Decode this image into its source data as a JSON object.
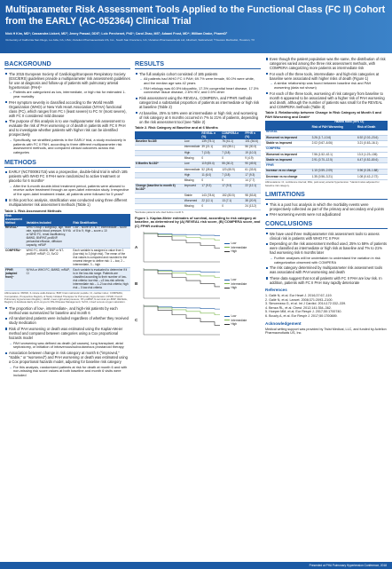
{
  "header": {
    "title": "Multiparameter Risk Assessment Tools Applied to the Functional Class (FC II) Cohort from the EARLY (AC-052364) Clinical Trial",
    "authors": "Nick H Kim, MD¹; Cassandra Lickert, MD²; Jenny Prasad, DDS²; Loic Perchenet, PhD³; Carol Zhao, MS²; Adaani Frost, MD⁴; William Drake, PharmD²",
    "affiliations": "¹University of California San Diego, La Jolla, CA, USA; ²Actelion Pharmaceuticals US, Inc., South San Francisco, CA; ³Actelion Pharmaceuticals Ltd, Allschwil, Switzerland; ⁴Houston Methodist, Houston, TX"
  },
  "background": {
    "heading": "BACKGROUND",
    "items": [
      {
        "text": "The 2015 European Society of Cardiology/European Respiratory Society (ESC/ERS) guidelines provide a multiparameter risk assessment guidelines for use at diagnosis and follow-up of patients with pulmonary arterial hypertension (PAH)¹",
        "sub": [
          "Patients are categorized as low, intermediate, or high risk for estimated 1-year mortality"
        ]
      },
      {
        "text": "PAH symptom severity is classified according to the World Health Organization (WHO) or New York Heart Association (NYHA) functional class (FC), which ranges from FC I (least severe) to FC IV (most severe), with FC II considered mild disease"
      },
      {
        "text": "The purpose of this analysis is to use multiparameter risk assessment to evaluate the risk of PAH worsening or of death in patients with FC II PAH and to investigate whether patients with higher risk can be identified prospectively",
        "sub": [
          "Specifically, we stratified patients in the EARLY trial, a study exclusively in patients with FC II PAH, according to three different multiparameter risk assessment methods, and compared clinical outcomes across risk categories"
        ]
      }
    ]
  },
  "methods": {
    "heading": "METHODS",
    "items": [
      {
        "text": "EARLY (NCT00091715) was a prospective, double-blind trial in which 185 patients with WHO FC II PAH were randomized to active treatment or placebo for 6 months²",
        "sub": [
          "After the 6-month double-blind treatment period, patients were allowed to receive active treatment through an open-label extension study. Irrespective of the open-label treatment intake, all patients were followed for 5 years³"
        ]
      },
      {
        "text": "In this post hoc analysis, stratification was conducted using three different multiparameter risk assessment methods (Table 1)"
      },
      {
        "table": {
          "caption": "Table 1. Risk Assessment Methods",
          "header": [
            "Risk Assessment Method",
            "Variables Included",
            "Risk Stratification"
          ],
          "rows": [
            [
              "REVEAL⁴",
              "WHO Group 1 subgroup, age, heart rate, systolic blood pressure, NYHA or WHO FC, renal insufficiency, 6MWD, BNP/NT-proBNP, pericardial effusion, diffusion capacity, mRAP",
              "Low – score of 1 to 7; Intermediate – score of 8 to 9; High – score ≥ 10"
            ],
            [
              "COMPERA⁵",
              "WHO FC, 6MWD, BNP or NT-proBNP, mRAP, CI, SvO2",
              "Each variable is assigned a value from 1 (low risk) to 3 (high risk). The mean of the risk values is computed and rounded to the nearest integer to define risk: 1 – low, 2 – intermediate, 3 – high"
            ],
            [
              "FPHR (adapted from)⁶",
              "NYHA or WHO FC, 6MWD, mRAP, CI",
              "Each variable is evaluated to determine if it is in the low-risk range. Patients are classified according to their number of low-risk criteria: low risk – ≥3 low-risk criteria; intermediate risk – 1–2 low-risk criteria; high risk – 0 low-risk criteria"
            ]
          ],
          "footnote": "Abbreviations: 6MWD, 6-minute walk distance; BNP, brain natriuretic peptide; CI, cardiac index; COMPERA, Comparative, Prospective Registry of Newly Initiated Therapies for Pulmonary Hypertension; FPHR, French Pulmonary Hypertension Registry; mRAP, mean right atrial pressure; NT-proBNP, N-terminal pro-BNP; REVEAL, Registry to Evaluate Early and Long-term PAH Disease Management; SvO2, mixed venous oxygen saturation."
        }
      },
      {
        "text": "The proportion of low-, intermediate-, and high-risk patients by each method was summarized for baseline and month 6"
      },
      {
        "text": "All randomized patients were included regardless of whether they received study medication"
      },
      {
        "text": "Risk of PAH worsening or death was estimated using the Kaplan-Meier method and compared between categories using a Cox proportional hazards model",
        "sub": [
          "PAH worsening was defined as death (all causes), lung transplant, atrial septostomy, or initiation of intravenous/subcutaneous prostanoid therapy"
        ]
      },
      {
        "text": "Association between change in risk category at month 6 (“improved,” “stable,” or “worsened”) and PAH worsening or death was estimated using a Cox proportional hazards model, adjusting for baseline risk category",
        "sub": [
          "For this analysis, randomized patients at risk for death at month 6 and with non-missing risk score values at both baseline and month 6 visits were included"
        ]
      }
    ]
  },
  "results": {
    "heading": "RESULTS",
    "items": [
      {
        "text": "The full analysis cohort consisted of 185 patients",
        "sub": [
          "All patients had WHO FC II PAH; 69.7% were female, 90.0% were white, and the median age was 42 years",
          "PAH etiology was 60.5% idiopathic, 17.3% congenital heart disease, 17.3% connective tissue disease, 2.6% HIV, and 0.5% other"
        ]
      },
      {
        "text": "Risk assessment using the REVEAL, COMPERA, and FPHR methods categorized a substantial proportion of patients as intermediate or high risk at baseline (Table 2)"
      },
      {
        "text": "At baseline, 25% to 59% were at intermediate or high risk; and worsening of risk category at 6 months occurred in 7% to 21% of patients, depending on the risk assessment tool (see Table 2)"
      },
      {
        "table": {
          "caption": "Table 2. Risk Category at Baseline and at 6 Months",
          "header": [
            null,
            null,
            "REVEAL n (%)",
            "COMPERA n (%)",
            "FPHR n (%)"
          ],
          "rows": [
            [
              "Baseline N=185",
              "Low",
              "139 (75.1)",
              "76 (41.1)",
              "101 (54.6)"
            ],
            [
              null,
              "Intermediate",
              "39 (21.1)",
              "102 (55.1)",
              "56 (30.3)"
            ],
            [
              null,
              "High",
              "7 (3.8)",
              "7 (3.8)",
              "19 (10.3)"
            ],
            [
              null,
              "Missing",
              "0",
              "0",
              "9 (4.9)"
            ],
            [
              "6 Months N=182*",
              "Low",
              "119 (65.4)",
              "55 (30.2)",
              "90 (49.5)"
            ],
            [
              null,
              "Intermediate",
              "52 (28.6)",
              "120 (65.9)",
              "61 (33.5)"
            ],
            [
              null,
              "High",
              "11 (6.0)",
              "7 (3.8)",
              "17 (9.3)"
            ],
            [
              null,
              "Missing",
              "0",
              "0",
              "14 (7.7)"
            ],
            [
              "Change (baseline to month 6) N=182*",
              "Improved",
              "17 (9.3)",
              "17 (9.3)",
              "22 (12.1)"
            ],
            [
              null,
              "Stable",
              "143 (78.6)",
              "152 (83.5)",
              "98 (53.8)"
            ],
            [
              null,
              "Worsened",
              "22 (12.1)",
              "13 (7.1)",
              "38 (20.9)"
            ],
            [
              null,
              "Missing",
              "0",
              "0",
              "24 (13.2)"
            ]
          ],
          "footnote": "*Excludes patients who died before month 6."
        }
      },
      {
        "figure": {
          "caption": "Figure 1. Kaplan-Meier estimates of survival, according to risk category at baseline, as determined by (A) REVEAL risk score, (B) COMPERA score, and (C) FPHR methods",
          "panels": [
            {
              "label": "A",
              "legend": [
                "Low",
                "Intermediate",
                "High"
              ]
            },
            {
              "label": "B",
              "legend": [
                "Low",
                "Intermediate",
                "High"
              ]
            },
            {
              "label": "C",
              "legend": [
                "Low",
                "Intermediate",
                "High"
              ]
            }
          ]
        }
      }
    ]
  },
  "results_cont": {
    "items": [
      {
        "text": "Even though the patient population was the same, the distribution of risk categories varied among the three risk assessment methods, with COMPERA categorizing more patients as intermediate risk"
      },
      {
        "text": "For each of the three tools, intermediate- and high-risk categories at baseline were associated with higher risks of death (Figure 1)",
        "sub": [
          "A similar relationship was found between baseline risk and PAH worsening (data not shown)"
        ]
      },
      {
        "text": "For each of the three tools, worsening of risk category from baseline to month 6 appeared to be associated with a higher risk of PAH worsening and death, although the number of patients was small for the REVEAL and COMPERA methods (Table 3)"
      },
      {
        "table": {
          "caption": "Table 3. Relationship between Change in Risk Category at Month 6 and PAH Worsening and Death*",
          "super": "Hazard Ratio (95% CI)",
          "header": [
            null,
            "Risk of PAH Worsening",
            "Risk of Death"
          ],
          "rows": [
            [
              "REVEAL"
            ],
            [
              "Worsened vs improved",
              "3.26 (1.7–10.6)",
              "6.92 (2.02–23.6)"
            ],
            [
              "Stable vs improved",
              "2.02 (0.67–6.06)",
              "3.21 (0.63–16.1)"
            ],
            [
              "COMPERA"
            ],
            [
              "Worsened vs improved",
              "7.56 (1.52–42.1)",
              "13.3 (1.23–136)"
            ],
            [
              "Stable vs improved",
              "2.91 (0.70–12.5)",
              "6.47 (0.52–80.6)"
            ],
            [
              "FPHR"
            ],
            [
              "Increase vs no change",
              "1.10 (0.59–2.09)",
              "0.96 (0.28–1.88)"
            ],
            [
              "Decrease vs no change",
              "1.35 (0.56–3.21)",
              "1.08 (0.42–2.72)"
            ]
          ],
          "footnote": "Abbreviations: CI, confidence interval; PAH, pulmonary arterial hypertension. *Hazard ratios adjusted for baseline risk category."
        }
      }
    ]
  },
  "limitations": {
    "heading": "LIMITATIONS",
    "items": [
      {
        "text": "This is a post hoc analysis in which the morbidity events were prospectively collected as part of the primary and secondary end points"
      },
      {
        "text": "PAH worsening events were not adjudicated"
      }
    ]
  },
  "conclusions": {
    "heading": "CONCLUSIONS",
    "items": [
      {
        "text": "We have used three multiparameter risk assessment tools to assess clinical risk in patients with WHO FC II PAH"
      },
      {
        "text": "Depending on the risk assessment method used, 25% to 59% of patients were classified as intermediate or high risk at baseline and 7% to 21% had worsening risk 6 months later",
        "sub": [
          "Further analyses will be undertaken to understand the variation in risk categorization observed with COMPERA"
        ]
      },
      {
        "text": "The risk category determined by multiparameter risk assessment tools was associated with PAH worsening and death"
      },
      {
        "text": "These data suggest that not all patients with FC II PAH are low risk. In addition, patients with FC II PAH may rapidly deteriorate"
      }
    ]
  },
  "references": {
    "heading": "References",
    "items": [
      {
        "note": "1. Galiè N, et al. Eur Heart J. 2016;37:67–119."
      },
      {
        "note": "2. Galiè N, et al. Lancet. 2008;371:2093–2100."
      },
      {
        "note": "3. Simonneau G, et al. Int J Cardiol. 2014;172:332–339."
      },
      {
        "note": "4. Benza RL, et al. Chest. 2012;141:354–362."
      },
      {
        "note": "5. Hoeper MM, et al. Eur Respir J. 2017;50:1700740."
      },
      {
        "note": "6. Boucly A, et al. Eur Respir J. 2017;50:1700889."
      }
    ]
  },
  "acknowledgement": {
    "heading": "Acknowledgement",
    "items": [
      {
        "note": "Medical writing support was provided by Twist Medical, LLC, and funded by Actelion Pharmaceuticals US, Inc."
      }
    ]
  },
  "footer": "Presented at PHA Pulmonary Hypertension Conference, 2018"
}
